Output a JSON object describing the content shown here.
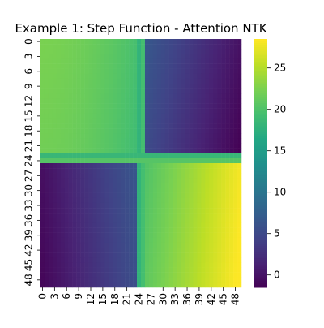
{
  "chart_data": {
    "type": "heatmap",
    "title": "Example 1: Step Function - Attention NTK",
    "xlabel": "",
    "ylabel": "",
    "n": 50,
    "x_tick_labels": [
      "0",
      "3",
      "6",
      "9",
      "12",
      "15",
      "18",
      "21",
      "24",
      "27",
      "30",
      "33",
      "36",
      "39",
      "42",
      "45",
      "48"
    ],
    "y_tick_labels": [
      "0",
      "3",
      "6",
      "9",
      "12",
      "15",
      "18",
      "21",
      "24",
      "27",
      "30",
      "33",
      "36",
      "39",
      "42",
      "45",
      "48"
    ],
    "colorbar": {
      "min": -1.5,
      "max": 28.5,
      "ticks": [
        0,
        5,
        10,
        15,
        20,
        25
      ],
      "tick_labels": [
        "0",
        "5",
        "10",
        "15",
        "20",
        "25"
      ]
    },
    "colormap": "viridis",
    "model": {
      "step_index": 25,
      "blocks": {
        "top_left": {
          "min": 19.5,
          "max": 22.5
        },
        "top_right": {
          "min": 0,
          "max": 7
        },
        "bottom_left": {
          "min": -1,
          "max": 6
        },
        "bottom_right": {
          "min": 20,
          "max": 28
        }
      },
      "boundary_rows": {
        "row_23": 18.5,
        "row_24": 20.5
      },
      "boundary_cols": {
        "col_24": 18.0,
        "col_25": 19.5
      }
    },
    "grid": false,
    "legend": "none"
  }
}
